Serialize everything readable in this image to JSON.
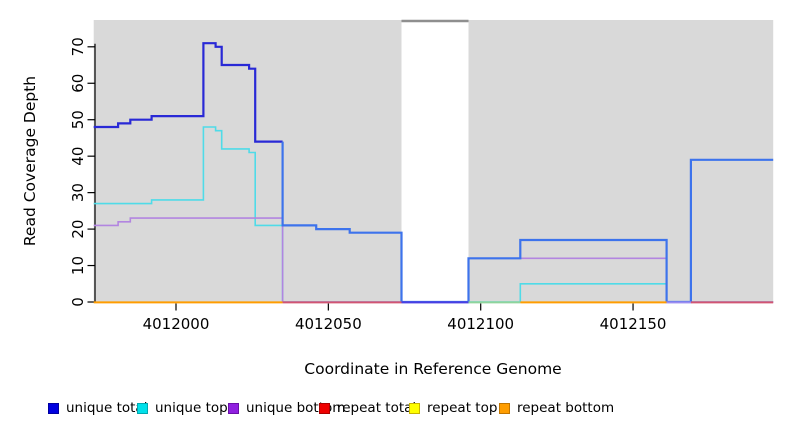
{
  "chart_data": {
    "type": "line",
    "subtype": "step",
    "title": "",
    "xlabel": "Coordinate in Reference Genome",
    "ylabel": "Read Coverage Depth",
    "xlim": [
      4011973,
      4012196
    ],
    "ylim": [
      0,
      77
    ],
    "x_ticks": [
      4012000,
      4012050,
      4012100,
      4012150
    ],
    "y_ticks": [
      0,
      10,
      20,
      30,
      40,
      50,
      60,
      70
    ],
    "grid": false,
    "legend_position": "bottom",
    "background": {
      "plot_bg": "#d9d9d9",
      "gap": {
        "start": 4012074,
        "end": 4012096,
        "top_line_color": "#8f8f8f"
      }
    },
    "series": [
      {
        "name": "unique total",
        "color": "#2929d6",
        "color_break": {
          "at": 4012035,
          "after_color": "#3d73ec"
        },
        "width": 2.2,
        "points": [
          [
            4011973,
            48
          ],
          [
            4011981,
            49
          ],
          [
            4011985,
            50
          ],
          [
            4011992,
            51
          ],
          [
            4012009,
            71
          ],
          [
            4012013,
            70
          ],
          [
            4012015,
            65
          ],
          [
            4012024,
            64
          ],
          [
            4012026,
            44
          ],
          [
            4012035,
            21
          ],
          [
            4012046,
            20
          ],
          [
            4012057,
            19
          ],
          [
            4012074,
            0
          ],
          [
            4012096,
            12
          ],
          [
            4012113,
            17
          ],
          [
            4012161,
            0
          ],
          [
            4012169,
            39
          ]
        ]
      },
      {
        "name": "unique top",
        "color": "#4fdbe8",
        "width": 1.6,
        "points": [
          [
            4011973,
            27
          ],
          [
            4011992,
            28
          ],
          [
            4012009,
            48
          ],
          [
            4012013,
            47
          ],
          [
            4012015,
            42
          ],
          [
            4012024,
            41
          ],
          [
            4012026,
            21
          ],
          [
            4012035,
            0
          ],
          [
            4012113,
            5
          ],
          [
            4012161,
            0
          ]
        ]
      },
      {
        "name": "unique bottom",
        "color": "#b285e0",
        "width": 1.6,
        "points": [
          [
            4011973,
            21
          ],
          [
            4011981,
            22
          ],
          [
            4011985,
            23
          ],
          [
            4012035,
            0
          ],
          [
            4012096,
            12
          ],
          [
            4012161,
            0
          ]
        ]
      },
      {
        "name": "repeat total",
        "color": "#ee1111",
        "width": 2,
        "points": [
          [
            4011973,
            0
          ]
        ]
      },
      {
        "name": "repeat top",
        "color": "#ffff00",
        "width": 2,
        "points": [
          [
            4011973,
            0
          ]
        ]
      },
      {
        "name": "repeat bottom",
        "color": "#ff9d00",
        "width": 2,
        "points": [
          [
            4011973,
            0
          ]
        ]
      }
    ],
    "zero_line_segments": [
      {
        "from": 4011973,
        "to": 4012035,
        "color": "#ff9d00"
      },
      {
        "from": 4012035,
        "to": 4012074,
        "color": "#d25572"
      },
      {
        "from": 4012074,
        "to": 4012096,
        "color": "#4a3fe2"
      },
      {
        "from": 4012096,
        "to": 4012113,
        "color": "#8fd49b"
      },
      {
        "from": 4012113,
        "to": 4012161,
        "color": "#ff9d00"
      },
      {
        "from": 4012161,
        "to": 4012169,
        "color": "#9c8cf0"
      },
      {
        "from": 4012169,
        "to": 4012196,
        "color": "#d25572"
      }
    ],
    "legend": [
      {
        "label": "unique total",
        "color": "#0000e0",
        "border": "#0000a0"
      },
      {
        "label": "unique top",
        "color": "#00e0ea",
        "border": "#00a8b0"
      },
      {
        "label": "unique bottom",
        "color": "#9020e0",
        "border": "#6a10a8"
      },
      {
        "label": "repeat total",
        "color": "#ee0000",
        "border": "#aa0000"
      },
      {
        "label": "repeat top",
        "color": "#ffff00",
        "border": "#c8b400"
      },
      {
        "label": "repeat bottom",
        "color": "#ff9d00",
        "border": "#c07400"
      }
    ]
  }
}
